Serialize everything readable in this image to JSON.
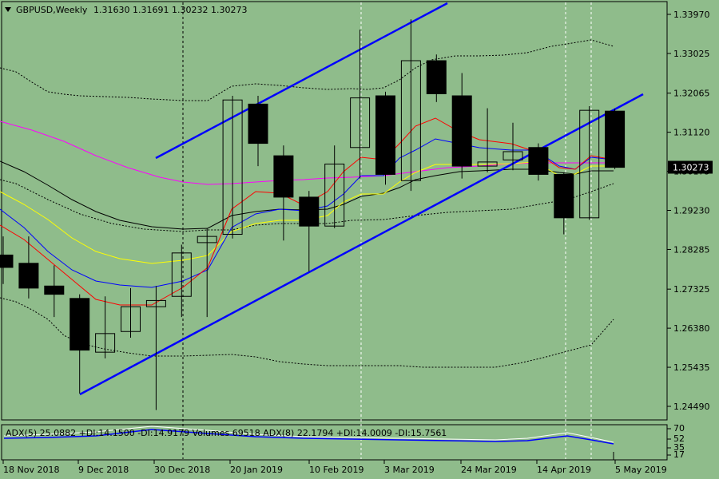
{
  "header": {
    "symbol": "GBPUSD,Weekly",
    "ohlc": "1.31630 1.31691 1.30232 1.30273"
  },
  "indicator": {
    "label": "ADX(5) 25.0882 +DI:14.1500 -DI:14.9179 Volumes 69518 ADX(8) 22.1794 +DI:14.0009 -DI:15.7561",
    "scale_ticks": [
      "70",
      "52",
      "35",
      "17"
    ]
  },
  "colors": {
    "background": "#8fbc8b",
    "bull_candle": "#ffffff",
    "bear_candle": "#000000",
    "trend_channel": "#0000ff",
    "ma_red": "#ff0000",
    "ma_blue": "#0000ff",
    "ma_yellow": "#ffff00",
    "ma_black": "#000000",
    "ma_magenta": "#ff00ff",
    "current_price_badge": "#000000"
  },
  "chart_data": {
    "type": "candlestick",
    "title": "GBPUSD,Weekly",
    "ylim": [
      1.2415,
      1.3445
    ],
    "y_ticks": [
      "1.33970",
      "1.33025",
      "1.32065",
      "1.31120",
      "1.30175",
      "1.29230",
      "1.28285",
      "1.27325",
      "1.26380",
      "1.25435",
      "1.24490"
    ],
    "x_ticks": [
      "18 Nov 2018",
      "9 Dec 2018",
      "30 Dec 2018",
      "20 Jan 2019",
      "10 Feb 2019",
      "3 Mar 2019",
      "24 Mar 2019",
      "14 Apr 2019",
      "5 May 2019"
    ],
    "current_price": "1.30273",
    "candles": [
      {
        "o": 1.2815,
        "h": 1.286,
        "l": 1.2745,
        "c": 1.2785
      },
      {
        "o": 1.2795,
        "h": 1.286,
        "l": 1.271,
        "c": 1.2735
      },
      {
        "o": 1.274,
        "h": 1.279,
        "l": 1.2665,
        "c": 1.272
      },
      {
        "o": 1.271,
        "h": 1.272,
        "l": 1.248,
        "c": 1.2585
      },
      {
        "o": 1.258,
        "h": 1.2715,
        "l": 1.2565,
        "c": 1.2625
      },
      {
        "o": 1.263,
        "h": 1.2735,
        "l": 1.2615,
        "c": 1.269
      },
      {
        "o": 1.269,
        "h": 1.274,
        "l": 1.244,
        "c": 1.2705
      },
      {
        "o": 1.2715,
        "h": 1.284,
        "l": 1.2665,
        "c": 1.282
      },
      {
        "o": 1.2845,
        "h": 1.288,
        "l": 1.2665,
        "c": 1.286
      },
      {
        "o": 1.2865,
        "h": 1.32,
        "l": 1.2855,
        "c": 1.319
      },
      {
        "o": 1.318,
        "h": 1.32,
        "l": 1.303,
        "c": 1.3085
      },
      {
        "o": 1.3055,
        "h": 1.308,
        "l": 1.285,
        "c": 1.2955
      },
      {
        "o": 1.2955,
        "h": 1.297,
        "l": 1.2775,
        "c": 1.2885
      },
      {
        "o": 1.2885,
        "h": 1.308,
        "l": 1.288,
        "c": 1.3035
      },
      {
        "o": 1.3075,
        "h": 1.336,
        "l": 1.3,
        "c": 1.3195
      },
      {
        "o": 1.32,
        "h": 1.321,
        "l": 1.2985,
        "c": 1.301
      },
      {
        "o": 1.2995,
        "h": 1.3385,
        "l": 1.297,
        "c": 1.3285
      },
      {
        "o": 1.3285,
        "h": 1.33,
        "l": 1.3185,
        "c": 1.3205
      },
      {
        "o": 1.32,
        "h": 1.3255,
        "l": 1.3,
        "c": 1.303
      },
      {
        "o": 1.303,
        "h": 1.317,
        "l": 1.3015,
        "c": 1.304
      },
      {
        "o": 1.3045,
        "h": 1.3135,
        "l": 1.302,
        "c": 1.3065
      },
      {
        "o": 1.3075,
        "h": 1.3085,
        "l": 1.2995,
        "c": 1.301
      },
      {
        "o": 1.301,
        "h": 1.3015,
        "l": 1.2865,
        "c": 1.2905
      },
      {
        "o": 1.2905,
        "h": 1.3175,
        "l": 1.29,
        "c": 1.3165
      },
      {
        "o": 1.3163,
        "h": 1.3169,
        "l": 1.3023,
        "c": 1.3027
      }
    ]
  }
}
